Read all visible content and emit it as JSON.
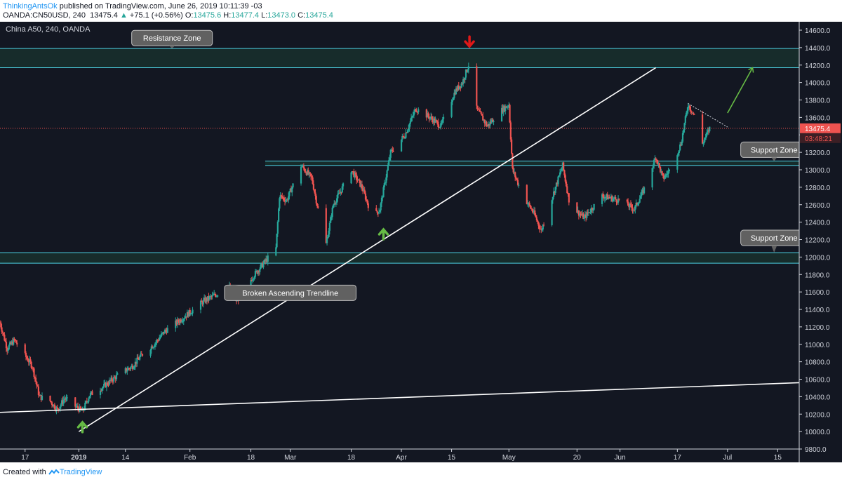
{
  "header": {
    "author": "ThinkingAntsOk",
    "published_text": "published on TradingView.com, June 26, 2019 10:11:39 -03",
    "symbol": "OANDA:CN50USD, 240",
    "last": "13475.4",
    "change": "+75.1 (+0.56%)",
    "ohlc": [
      {
        "label": "O:",
        "value": "13475.6"
      },
      {
        "label": "H:",
        "value": "13477.4"
      },
      {
        "label": "L:",
        "value": "13473.0"
      },
      {
        "label": "C:",
        "value": "13475.4"
      }
    ]
  },
  "footer": {
    "created_with": "Created with",
    "brand": "TradingView"
  },
  "colors": {
    "background": "#131722",
    "up": "#26a69a",
    "down": "#ef5350",
    "zone_line": "#4dd0e1",
    "zone_fill": "#1b3a32",
    "trendline": "#ffffff",
    "price_line": "#ef5350",
    "up_arrow": "#66bb45",
    "down_arrow": "#e01818",
    "callout_bg": "#616161"
  },
  "chart_data": {
    "type": "candlestick",
    "title": "China A50, 240, OANDA",
    "y_axis": {
      "min": 9800,
      "max": 14600,
      "ticks": [
        "9800.0",
        "10000.0",
        "10200.0",
        "10400.0",
        "10600.0",
        "10800.0",
        "11000.0",
        "11200.0",
        "11400.0",
        "11600.0",
        "11800.0",
        "12000.0",
        "12200.0",
        "12400.0",
        "12600.0",
        "12800.0",
        "13000.0",
        "13200.0",
        "13400.0",
        "13600.0",
        "13800.0",
        "14000.0",
        "14200.0",
        "14400.0",
        "14600.0"
      ]
    },
    "x_axis": {
      "start": "2018-12-10",
      "end": "2019-07-21",
      "ticks": [
        {
          "label": "17",
          "date": "2018-12-17"
        },
        {
          "label": "2019",
          "date": "2019-01-01",
          "bold": true
        },
        {
          "label": "14",
          "date": "2019-01-14"
        },
        {
          "label": "Feb",
          "date": "2019-02-01"
        },
        {
          "label": "18",
          "date": "2019-02-18"
        },
        {
          "label": "Mar",
          "date": "2019-03-01"
        },
        {
          "label": "18",
          "date": "2019-03-18"
        },
        {
          "label": "Apr",
          "date": "2019-04-01"
        },
        {
          "label": "15",
          "date": "2019-04-15"
        },
        {
          "label": "May",
          "date": "2019-05-01"
        },
        {
          "label": "20",
          "date": "2019-05-20"
        },
        {
          "label": "Jun",
          "date": "2019-06-01"
        },
        {
          "label": "17",
          "date": "2019-06-17"
        },
        {
          "label": "Jul",
          "date": "2019-07-01"
        },
        {
          "label": "15",
          "date": "2019-07-15"
        }
      ]
    },
    "price_path": [
      {
        "date": "2018-12-10",
        "price": 11250
      },
      {
        "date": "2018-12-12",
        "price": 10950
      },
      {
        "date": "2018-12-14",
        "price": 11050
      },
      {
        "date": "2018-12-19",
        "price": 10750
      },
      {
        "date": "2018-12-21",
        "price": 10400
      },
      {
        "date": "2018-12-24",
        "price": 10350
      },
      {
        "date": "2018-12-26",
        "price": 10250
      },
      {
        "date": "2018-12-28",
        "price": 10380
      },
      {
        "date": "2019-01-02",
        "price": 10230
      },
      {
        "date": "2019-01-04",
        "price": 10420
      },
      {
        "date": "2019-01-08",
        "price": 10520
      },
      {
        "date": "2019-01-12",
        "price": 10650
      },
      {
        "date": "2019-01-16",
        "price": 10750
      },
      {
        "date": "2019-01-19",
        "price": 10900
      },
      {
        "date": "2019-01-22",
        "price": 11000
      },
      {
        "date": "2019-01-25",
        "price": 11150
      },
      {
        "date": "2019-01-30",
        "price": 11300
      },
      {
        "date": "2019-02-05",
        "price": 11500
      },
      {
        "date": "2019-02-12",
        "price": 11650
      },
      {
        "date": "2019-02-14",
        "price": 11500
      },
      {
        "date": "2019-02-19",
        "price": 11800
      },
      {
        "date": "2019-02-22",
        "price": 11950
      },
      {
        "date": "2019-02-25",
        "price": 12100
      },
      {
        "date": "2019-02-26",
        "price": 12700
      },
      {
        "date": "2019-02-28",
        "price": 12650
      },
      {
        "date": "2019-03-04",
        "price": 13050
      },
      {
        "date": "2019-03-07",
        "price": 12900
      },
      {
        "date": "2019-03-09",
        "price": 12500
      },
      {
        "date": "2019-03-11",
        "price": 12150
      },
      {
        "date": "2019-03-13",
        "price": 12600
      },
      {
        "date": "2019-03-15",
        "price": 12750
      },
      {
        "date": "2019-03-18",
        "price": 13000
      },
      {
        "date": "2019-03-21",
        "price": 12800
      },
      {
        "date": "2019-03-24",
        "price": 12450
      },
      {
        "date": "2019-03-26",
        "price": 12550
      },
      {
        "date": "2019-03-29",
        "price": 13200
      },
      {
        "date": "2019-04-02",
        "price": 13400
      },
      {
        "date": "2019-04-05",
        "price": 13700
      },
      {
        "date": "2019-04-09",
        "price": 13600
      },
      {
        "date": "2019-04-12",
        "price": 13500
      },
      {
        "date": "2019-04-16",
        "price": 13900
      },
      {
        "date": "2019-04-18",
        "price": 14000
      },
      {
        "date": "2019-04-20",
        "price": 14230
      },
      {
        "date": "2019-04-22",
        "price": 13700
      },
      {
        "date": "2019-04-25",
        "price": 13500
      },
      {
        "date": "2019-04-28",
        "price": 13650
      },
      {
        "date": "2019-05-01",
        "price": 13750
      },
      {
        "date": "2019-05-02",
        "price": 13000
      },
      {
        "date": "2019-05-05",
        "price": 12700
      },
      {
        "date": "2019-05-08",
        "price": 12500
      },
      {
        "date": "2019-05-10",
        "price": 12300
      },
      {
        "date": "2019-05-14",
        "price": 12800
      },
      {
        "date": "2019-05-16",
        "price": 13050
      },
      {
        "date": "2019-05-18",
        "price": 12600
      },
      {
        "date": "2019-05-22",
        "price": 12450
      },
      {
        "date": "2019-05-27",
        "price": 12700
      },
      {
        "date": "2019-06-01",
        "price": 12650
      },
      {
        "date": "2019-06-05",
        "price": 12550
      },
      {
        "date": "2019-06-08",
        "price": 12800
      },
      {
        "date": "2019-06-11",
        "price": 13150
      },
      {
        "date": "2019-06-13",
        "price": 12900
      },
      {
        "date": "2019-06-15",
        "price": 13000
      },
      {
        "date": "2019-06-18",
        "price": 13300
      },
      {
        "date": "2019-06-20",
        "price": 13750
      },
      {
        "date": "2019-06-22",
        "price": 13600
      },
      {
        "date": "2019-06-24",
        "price": 13300
      },
      {
        "date": "2019-06-26",
        "price": 13475
      }
    ],
    "zones": [
      {
        "name": "Resistance Zone",
        "low": 14170,
        "high": 14390
      },
      {
        "name": "Support Zone",
        "low": 13050,
        "high": 13100
      },
      {
        "name": "Support Zone",
        "low": 11930,
        "high": 12050
      }
    ],
    "lines": [
      {
        "name": "Broken Ascending Trendline",
        "from": {
          "date": "2019-01-01",
          "price": 10000
        },
        "to": {
          "date": "2019-06-11",
          "price": 14170
        }
      },
      {
        "name": "Long-term trendline",
        "from": {
          "date": "2018-12-10",
          "price": 10220
        },
        "to": {
          "date": "2019-07-21",
          "price": 10560
        }
      },
      {
        "name": "Short-term resistance",
        "from": {
          "date": "2019-06-20",
          "price": 13760
        },
        "to": {
          "date": "2019-07-01",
          "price": 13490
        },
        "dotted": true
      },
      {
        "name": "Projection",
        "from": {
          "date": "2019-07-01",
          "price": 13650
        },
        "to": {
          "date": "2019-07-08",
          "price": 14170
        },
        "green": true
      }
    ],
    "markers": [
      {
        "type": "up-arrow",
        "date": "2019-01-02",
        "price": 10050
      },
      {
        "type": "up-arrow",
        "date": "2019-03-27",
        "price": 12260
      },
      {
        "type": "down-arrow",
        "date": "2019-04-20",
        "price": 14470
      }
    ],
    "callouts": [
      {
        "text": "Resistance Zone",
        "date": "2019-01-27",
        "price": 14510,
        "pointer_to": 14390
      },
      {
        "text": "Support Zone",
        "date": "2019-07-14",
        "price": 13230,
        "pointer_to": 13100
      },
      {
        "text": "Support Zone",
        "date": "2019-07-14",
        "price": 12220,
        "pointer_to": 12050
      },
      {
        "text": "Broken Ascending Trendline",
        "date": "2019-03-01",
        "price": 11590,
        "pointer_to": 11660
      }
    ],
    "current_price": {
      "value": "13475.4",
      "numeric": 13475.4,
      "countdown": "03:48:21"
    }
  }
}
